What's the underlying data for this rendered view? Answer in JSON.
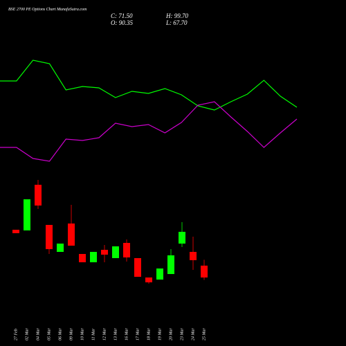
{
  "header": {
    "title": "BSE 2700 PE Options  Chart MunafaSutra.com",
    "stats": [
      "C: 71.50",
      "O: 90.35",
      "H: 99.70",
      "L: 67.70"
    ]
  },
  "chart_data": [
    {
      "type": "line",
      "x": [
        0,
        1,
        2,
        3,
        4,
        5,
        6,
        7,
        8,
        9,
        10,
        11,
        12,
        13,
        14,
        15,
        16,
        17,
        18
      ],
      "xlim": [
        0,
        18
      ],
      "ylim": [
        0,
        250
      ],
      "series": [
        {
          "color": "#00ff00",
          "values": [
            133,
            133,
            163,
            158,
            120,
            125,
            123,
            109,
            118,
            115,
            122,
            113,
            97,
            91,
            103,
            114,
            134,
            111,
            95
          ]
        },
        {
          "color": "#cc00cc",
          "values": [
            37,
            37,
            21,
            17,
            49,
            47,
            51,
            72,
            67,
            70,
            58,
            73,
            98,
            103,
            81,
            60,
            37,
            58,
            78
          ]
        }
      ]
    },
    {
      "type": "candlestick",
      "categories": [
        "27 Feb",
        "02 Mar",
        "04 Mar",
        "05 Mar",
        "06 Mar",
        "09 Mar",
        "10 Mar",
        "11 Mar",
        "12 Mar",
        "13 Mar",
        "16 Mar",
        "17 Mar",
        "18 Mar",
        "19 Mar",
        "20 Mar",
        "23 Mar",
        "24 Mar",
        "25 Mar"
      ],
      "open": [
        147.4,
        146.3,
        218.9,
        155.1,
        112.2,
        157.3,
        108.9,
        95.7,
        115.5,
        102.3,
        126.5,
        102.3,
        71.5,
        68.2,
        77.0,
        125.4,
        112.2,
        90.35
      ],
      "high": [
        147.4,
        195.8,
        226.6,
        155.1,
        125.4,
        187.0,
        108.9,
        112.2,
        123.2,
        121.0,
        132.0,
        102.3,
        71.5,
        85.8,
        116.6,
        159.5,
        136.4,
        99.7
      ],
      "low": [
        141.9,
        146.3,
        180.4,
        108.9,
        112.2,
        122.1,
        95.7,
        95.7,
        95.7,
        102.3,
        96.8,
        72.6,
        61.6,
        68.2,
        77.0,
        119.9,
        83.6,
        67.7
      ],
      "close": [
        141.9,
        195.8,
        185.9,
        116.6,
        125.4,
        122.1,
        95.7,
        112.2,
        107.8,
        121.0,
        103.4,
        72.6,
        63.8,
        85.8,
        106.7,
        144.1,
        99.0,
        71.5
      ],
      "ylim": [
        56.1,
        232.1
      ],
      "up_color": "#00ff00",
      "down_color": "#ff0000"
    }
  ]
}
